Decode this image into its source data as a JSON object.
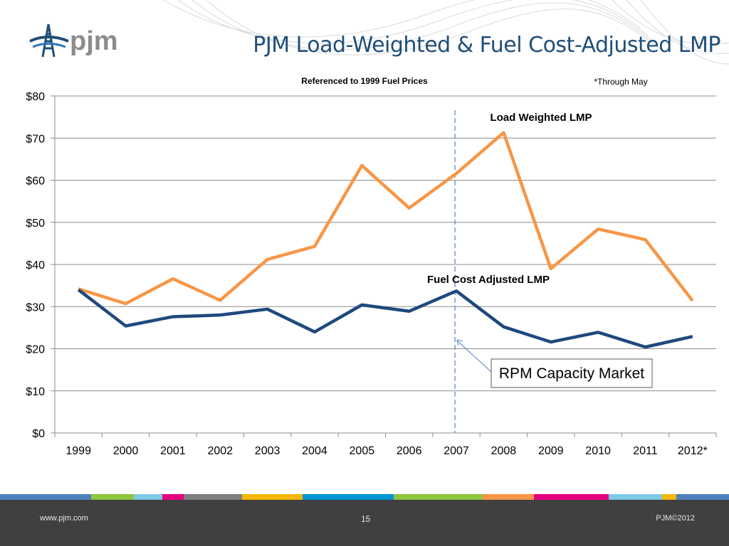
{
  "logo_text": "pjm",
  "slide_title": "PJM Load-Weighted & Fuel Cost-Adjusted LMP",
  "footer": {
    "website": "www.pjm.com",
    "page_number": "15",
    "copyright": "PJM©2012"
  },
  "colors": {
    "load_weighted": "#f79646",
    "fuel_adjusted": "#1f497d",
    "title": "#1f4e79",
    "footer_bg": "#404040"
  },
  "chart_data": {
    "type": "line",
    "subtitle": "Referenced to 1999 Fuel Prices",
    "note": "*Through May",
    "categories": [
      "1999",
      "2000",
      "2001",
      "2002",
      "2003",
      "2004",
      "2005",
      "2006",
      "2007",
      "2008",
      "2009",
      "2010",
      "2011",
      "2012*"
    ],
    "y_ticks": [
      "$0",
      "$10",
      "$20",
      "$30",
      "$40",
      "$50",
      "$60",
      "$70",
      "$80"
    ],
    "ylim": [
      0,
      80
    ],
    "grid": true,
    "series": [
      {
        "name": "Load Weighted LMP",
        "values": [
          34.2,
          30.7,
          36.6,
          31.5,
          41.2,
          44.3,
          63.5,
          53.4,
          61.6,
          71.3,
          39.0,
          48.4,
          45.9,
          31.4
        ]
      },
      {
        "name": "Fuel Cost Adjusted LMP",
        "values": [
          34.0,
          25.4,
          27.6,
          28.0,
          29.4,
          24.0,
          30.4,
          28.9,
          33.7,
          25.2,
          21.6,
          23.9,
          20.4,
          22.9
        ]
      }
    ],
    "annotation": {
      "text": "RPM Capacity Market",
      "x_between": [
        "2006",
        "2007"
      ]
    }
  }
}
